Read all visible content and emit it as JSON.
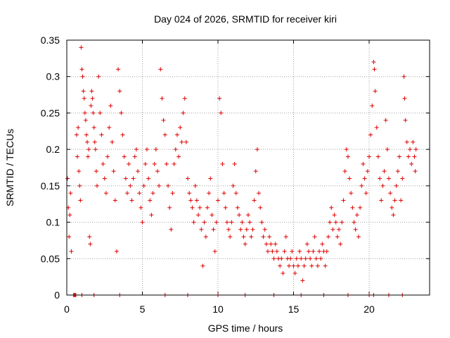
{
  "chart_data": {
    "type": "scatter",
    "title": "Day 024 of 2026, SRMTID for receiver kiri",
    "xlabel": "GPS time / hours",
    "ylabel": "SRMTID / TECUs",
    "xlim": [
      0,
      24
    ],
    "ylim": [
      0,
      0.35
    ],
    "xticks": [
      0,
      5,
      10,
      15,
      20
    ],
    "yticks": [
      0,
      0.05,
      0.1,
      0.15,
      0.2,
      0.25,
      0.3,
      0.35
    ],
    "xtick_labels": [
      "0",
      "5",
      "10",
      "15",
      "20"
    ],
    "ytick_labels": [
      "0",
      "0.05",
      "0.1",
      "0.15",
      "0.2",
      "0.25",
      "0.3",
      "0.35"
    ],
    "grid": true,
    "marker": "+",
    "color": "#e00000",
    "series": [
      {
        "name": "SRMTID",
        "points": [
          [
            0.05,
            0.16
          ],
          [
            0.1,
            0.12
          ],
          [
            0.15,
            0.08
          ],
          [
            0.2,
            0.11
          ],
          [
            0.25,
            0.14
          ],
          [
            0.3,
            0.06
          ],
          [
            0.5,
            0.0
          ],
          [
            0.55,
            0.0
          ],
          [
            0.65,
            0.22
          ],
          [
            0.7,
            0.19
          ],
          [
            0.75,
            0.23
          ],
          [
            0.8,
            0.17
          ],
          [
            0.85,
            0.15
          ],
          [
            0.9,
            0.13
          ],
          [
            0.95,
            0.34
          ],
          [
            1.0,
            0.31
          ],
          [
            1.05,
            0.3
          ],
          [
            1.1,
            0.28
          ],
          [
            1.15,
            0.27
          ],
          [
            1.2,
            0.25
          ],
          [
            1.25,
            0.24
          ],
          [
            1.3,
            0.22
          ],
          [
            1.35,
            0.21
          ],
          [
            1.4,
            0.19
          ],
          [
            1.45,
            0.2
          ],
          [
            1.5,
            0.08
          ],
          [
            1.55,
            0.07
          ],
          [
            1.6,
            0.26
          ],
          [
            1.65,
            0.28
          ],
          [
            1.7,
            0.27
          ],
          [
            1.75,
            0.25
          ],
          [
            1.8,
            0.23
          ],
          [
            1.85,
            0.21
          ],
          [
            1.9,
            0.2
          ],
          [
            1.95,
            0.17
          ],
          [
            2.0,
            0.15
          ],
          [
            2.1,
            0.3
          ],
          [
            2.2,
            0.25
          ],
          [
            2.3,
            0.22
          ],
          [
            2.4,
            0.18
          ],
          [
            2.5,
            0.16
          ],
          [
            2.6,
            0.14
          ],
          [
            2.7,
            0.19
          ],
          [
            2.8,
            0.23
          ],
          [
            2.9,
            0.26
          ],
          [
            3.0,
            0.21
          ],
          [
            3.1,
            0.17
          ],
          [
            3.2,
            0.13
          ],
          [
            3.3,
            0.06
          ],
          [
            3.4,
            0.31
          ],
          [
            3.5,
            0.28
          ],
          [
            3.6,
            0.25
          ],
          [
            3.7,
            0.22
          ],
          [
            3.8,
            0.19
          ],
          [
            3.9,
            0.16
          ],
          [
            4.0,
            0.14
          ],
          [
            4.1,
            0.18
          ],
          [
            4.2,
            0.15
          ],
          [
            4.3,
            0.13
          ],
          [
            4.4,
            0.16
          ],
          [
            4.5,
            0.19
          ],
          [
            4.6,
            0.2
          ],
          [
            4.7,
            0.17
          ],
          [
            4.8,
            0.14
          ],
          [
            4.9,
            0.12
          ],
          [
            5.0,
            0.1
          ],
          [
            5.1,
            0.15
          ],
          [
            5.2,
            0.18
          ],
          [
            5.3,
            0.2
          ],
          [
            5.4,
            0.16
          ],
          [
            5.5,
            0.13
          ],
          [
            5.6,
            0.11
          ],
          [
            5.7,
            0.14
          ],
          [
            5.8,
            0.18
          ],
          [
            5.9,
            0.2
          ],
          [
            6.0,
            0.17
          ],
          [
            6.1,
            0.15
          ],
          [
            6.2,
            0.31
          ],
          [
            6.3,
            0.27
          ],
          [
            6.4,
            0.24
          ],
          [
            6.5,
            0.22
          ],
          [
            6.6,
            0.18
          ],
          [
            6.7,
            0.15
          ],
          [
            6.8,
            0.12
          ],
          [
            6.9,
            0.09
          ],
          [
            7.0,
            0.14
          ],
          [
            7.1,
            0.18
          ],
          [
            7.2,
            0.2
          ],
          [
            7.3,
            0.22
          ],
          [
            7.4,
            0.19
          ],
          [
            7.5,
            0.23
          ],
          [
            7.6,
            0.21
          ],
          [
            7.7,
            0.25
          ],
          [
            7.8,
            0.27
          ],
          [
            7.9,
            0.21
          ],
          [
            8.0,
            0.16
          ],
          [
            8.1,
            0.14
          ],
          [
            8.2,
            0.13
          ],
          [
            8.3,
            0.12
          ],
          [
            8.4,
            0.1
          ],
          [
            8.5,
            0.15
          ],
          [
            8.6,
            0.13
          ],
          [
            8.7,
            0.11
          ],
          [
            8.8,
            0.12
          ],
          [
            8.9,
            0.09
          ],
          [
            9.0,
            0.04
          ],
          [
            9.1,
            0.1
          ],
          [
            9.2,
            0.08
          ],
          [
            9.3,
            0.12
          ],
          [
            9.4,
            0.14
          ],
          [
            9.5,
            0.16
          ],
          [
            9.6,
            0.11
          ],
          [
            9.7,
            0.09
          ],
          [
            9.8,
            0.06
          ],
          [
            9.9,
            0.1
          ],
          [
            10.0,
            0.13
          ],
          [
            10.1,
            0.27
          ],
          [
            10.2,
            0.25
          ],
          [
            10.3,
            0.18
          ],
          [
            10.4,
            0.14
          ],
          [
            10.5,
            0.12
          ],
          [
            10.6,
            0.1
          ],
          [
            10.7,
            0.09
          ],
          [
            10.8,
            0.08
          ],
          [
            10.9,
            0.1
          ],
          [
            11.0,
            0.15
          ],
          [
            11.1,
            0.18
          ],
          [
            11.2,
            0.14
          ],
          [
            11.3,
            0.12
          ],
          [
            11.4,
            0.11
          ],
          [
            11.5,
            0.09
          ],
          [
            11.6,
            0.1
          ],
          [
            11.7,
            0.08
          ],
          [
            11.8,
            0.07
          ],
          [
            11.9,
            0.09
          ],
          [
            12.0,
            0.11
          ],
          [
            12.1,
            0.1
          ],
          [
            12.2,
            0.08
          ],
          [
            12.3,
            0.09
          ],
          [
            12.4,
            0.13
          ],
          [
            12.5,
            0.17
          ],
          [
            12.6,
            0.2
          ],
          [
            12.7,
            0.14
          ],
          [
            12.8,
            0.12
          ],
          [
            12.9,
            0.1
          ],
          [
            13.0,
            0.08
          ],
          [
            13.1,
            0.09
          ],
          [
            13.2,
            0.07
          ],
          [
            13.3,
            0.06
          ],
          [
            13.4,
            0.08
          ],
          [
            13.5,
            0.07
          ],
          [
            13.6,
            0.06
          ],
          [
            13.7,
            0.05
          ],
          [
            13.8,
            0.07
          ],
          [
            13.9,
            0.06
          ],
          [
            14.0,
            0.05
          ],
          [
            14.1,
            0.04
          ],
          [
            14.2,
            0.05
          ],
          [
            14.3,
            0.03
          ],
          [
            14.4,
            0.06
          ],
          [
            14.5,
            0.08
          ],
          [
            14.6,
            0.05
          ],
          [
            14.7,
            0.04
          ],
          [
            14.8,
            0.05
          ],
          [
            14.9,
            0.06
          ],
          [
            15.0,
            0.04
          ],
          [
            15.1,
            0.03
          ],
          [
            15.2,
            0.05
          ],
          [
            15.3,
            0.04
          ],
          [
            15.4,
            0.06
          ],
          [
            15.5,
            0.05
          ],
          [
            15.6,
            0.02
          ],
          [
            15.7,
            0.04
          ],
          [
            15.8,
            0.05
          ],
          [
            15.9,
            0.07
          ],
          [
            16.0,
            0.06
          ],
          [
            16.1,
            0.05
          ],
          [
            16.2,
            0.04
          ],
          [
            16.3,
            0.06
          ],
          [
            16.4,
            0.08
          ],
          [
            16.5,
            0.05
          ],
          [
            16.6,
            0.04
          ],
          [
            16.7,
            0.06
          ],
          [
            16.8,
            0.05
          ],
          [
            16.9,
            0.07
          ],
          [
            17.0,
            0.06
          ],
          [
            17.1,
            0.04
          ],
          [
            17.2,
            0.06
          ],
          [
            17.3,
            0.08
          ],
          [
            17.4,
            0.1
          ],
          [
            17.5,
            0.12
          ],
          [
            17.6,
            0.09
          ],
          [
            17.7,
            0.11
          ],
          [
            17.8,
            0.1
          ],
          [
            17.9,
            0.08
          ],
          [
            18.0,
            0.09
          ],
          [
            18.1,
            0.07
          ],
          [
            18.2,
            0.1
          ],
          [
            18.3,
            0.13
          ],
          [
            18.4,
            0.17
          ],
          [
            18.5,
            0.2
          ],
          [
            18.6,
            0.19
          ],
          [
            18.7,
            0.16
          ],
          [
            18.8,
            0.14
          ],
          [
            18.9,
            0.12
          ],
          [
            19.0,
            0.1
          ],
          [
            19.1,
            0.09
          ],
          [
            19.2,
            0.11
          ],
          [
            19.3,
            0.08
          ],
          [
            19.4,
            0.12
          ],
          [
            19.5,
            0.15
          ],
          [
            19.6,
            0.18
          ],
          [
            19.7,
            0.16
          ],
          [
            19.8,
            0.14
          ],
          [
            19.9,
            0.17
          ],
          [
            20.0,
            0.19
          ],
          [
            20.1,
            0.22
          ],
          [
            20.2,
            0.26
          ],
          [
            20.3,
            0.32
          ],
          [
            20.35,
            0.31
          ],
          [
            20.4,
            0.28
          ],
          [
            20.5,
            0.23
          ],
          [
            20.6,
            0.19
          ],
          [
            20.7,
            0.16
          ],
          [
            20.8,
            0.13
          ],
          [
            20.9,
            0.15
          ],
          [
            21.0,
            0.17
          ],
          [
            21.1,
            0.24
          ],
          [
            21.2,
            0.2
          ],
          [
            21.3,
            0.16
          ],
          [
            21.4,
            0.14
          ],
          [
            21.5,
            0.12
          ],
          [
            21.6,
            0.11
          ],
          [
            21.7,
            0.13
          ],
          [
            21.8,
            0.15
          ],
          [
            21.9,
            0.17
          ],
          [
            22.0,
            0.19
          ],
          [
            22.1,
            0.13
          ],
          [
            22.2,
            0.16
          ],
          [
            22.3,
            0.3
          ],
          [
            22.35,
            0.27
          ],
          [
            22.4,
            0.24
          ],
          [
            22.5,
            0.21
          ],
          [
            22.6,
            0.19
          ],
          [
            22.7,
            0.2
          ],
          [
            22.8,
            0.18
          ],
          [
            22.9,
            0.21
          ],
          [
            23.0,
            0.19
          ],
          [
            23.05,
            0.17
          ],
          [
            23.1,
            0.2
          ],
          [
            0.45,
            0.0
          ],
          [
            0.6,
            0.0
          ],
          [
            1.0,
            0.0
          ],
          [
            1.8,
            0.0
          ],
          [
            3.5,
            0.0
          ],
          [
            6.5,
            0.0
          ],
          [
            8.0,
            0.0
          ],
          [
            10.0,
            0.0
          ],
          [
            11.8,
            0.0
          ],
          [
            13.7,
            0.0
          ],
          [
            15.5,
            0.0
          ],
          [
            17.0,
            0.0
          ],
          [
            18.6,
            0.0
          ],
          [
            20.0,
            0.0
          ],
          [
            20.3,
            0.0
          ],
          [
            21.3,
            0.0
          ],
          [
            22.2,
            0.0
          ]
        ]
      }
    ]
  }
}
